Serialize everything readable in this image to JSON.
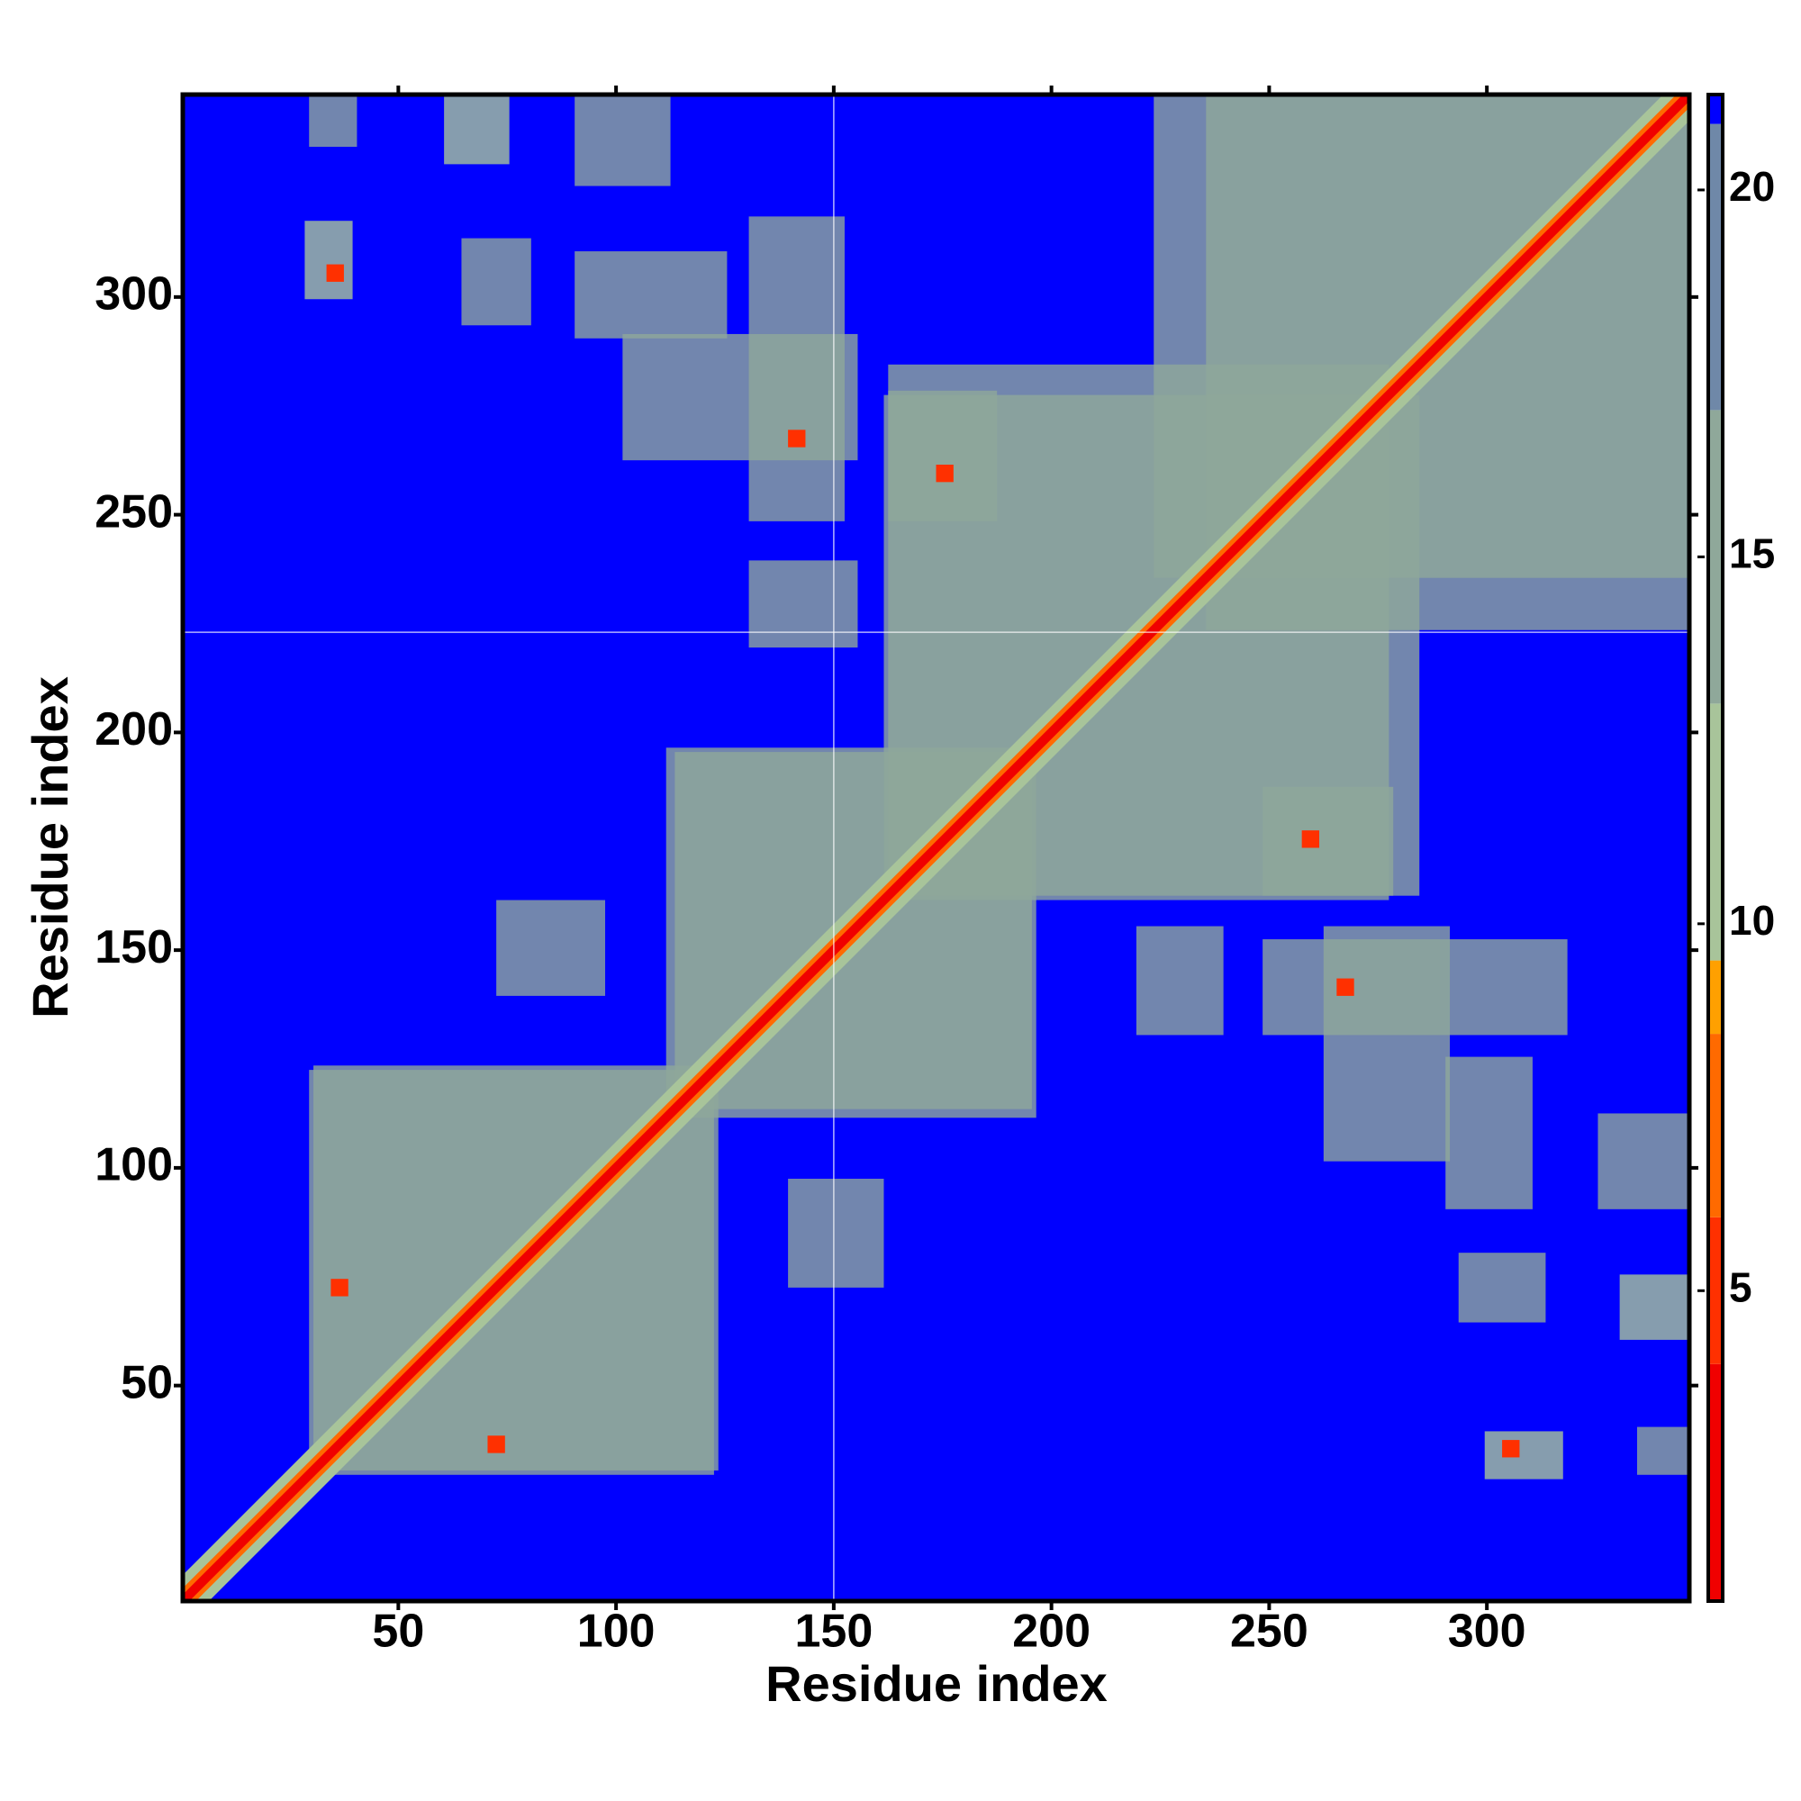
{
  "chart_data": {
    "type": "contact-map",
    "x_label": "Residue index",
    "y_label": "Residue index",
    "xlim": [
      0.5,
      346.5
    ],
    "ylim": [
      0.5,
      346.5
    ],
    "xticks": [
      50,
      100,
      150,
      200,
      250,
      300
    ],
    "yticks": [
      50,
      100,
      150,
      200,
      250,
      300
    ],
    "clim": [
      0.77,
      21.3
    ],
    "cticks": [
      5,
      10,
      15,
      20
    ],
    "colorscale": [
      {
        "value": 0.77,
        "color": "#f00000"
      },
      {
        "value": 4,
        "color": "#ff3000"
      },
      {
        "value": 6,
        "color": "#ff6a00"
      },
      {
        "value": 8.5,
        "color": "#ffa000"
      },
      {
        "value": 9.5,
        "color": "#a8c49a"
      },
      {
        "value": 13,
        "color": "#8fa89a"
      },
      {
        "value": 17,
        "color": "#6f88a8"
      },
      {
        "value": 20.9,
        "color": "#0000ff"
      }
    ],
    "symmetric": true,
    "regions": [
      {
        "x": [
          30,
          123
        ],
        "y": [
          31,
          122
        ],
        "value": 13
      },
      {
        "x": [
          112,
          195
        ],
        "y": [
          114,
          196
        ],
        "value": 13
      },
      {
        "x": [
          163,
          277
        ],
        "y": [
          162,
          284
        ],
        "value": 13
      },
      {
        "x": [
          224,
          346
        ],
        "y": [
          236,
          346
        ],
        "value": 13
      },
      {
        "x": [
          30,
          40
        ],
        "y": [
          335,
          346
        ],
        "value": 14
      },
      {
        "x": [
          61,
          75
        ],
        "y": [
          331,
          346
        ],
        "value": 12
      },
      {
        "x": [
          91,
          112
        ],
        "y": [
          326,
          346
        ],
        "value": 13
      },
      {
        "x": [
          29,
          39
        ],
        "y": [
          300,
          317
        ],
        "value": 11
      },
      {
        "x": [
          65,
          80
        ],
        "y": [
          294,
          313
        ],
        "value": 13
      },
      {
        "x": [
          91,
          125
        ],
        "y": [
          291,
          310
        ],
        "value": 13
      },
      {
        "x": [
          131,
          152
        ],
        "y": [
          249,
          318
        ],
        "value": 13
      },
      {
        "x": [
          102,
          155
        ],
        "y": [
          263,
          291
        ],
        "value": 15
      },
      {
        "x": [
          131,
          155
        ],
        "y": [
          220,
          239
        ],
        "value": 15
      },
      {
        "x": [
          163,
          187
        ],
        "y": [
          249,
          278
        ],
        "value": 13
      },
      {
        "x": [
          73,
          97
        ],
        "y": [
          140,
          161
        ],
        "value": 15
      },
      {
        "x": [
          34,
          37
        ],
        "y": [
          304,
          307
        ],
        "value": 4
      },
      {
        "x": [
          140,
          143
        ],
        "y": [
          266,
          269
        ],
        "value": 5
      },
      {
        "x": [
          174,
          177
        ],
        "y": [
          258,
          261
        ],
        "value": 5
      },
      {
        "x": [
          35,
          38
        ],
        "y": [
          71,
          74
        ],
        "value": 5
      }
    ],
    "diagonal": {
      "x": [
        1,
        346
      ],
      "bands": [
        {
          "width": 6,
          "value": 12
        },
        {
          "width": 3,
          "value": 7
        },
        {
          "width": 1.5,
          "value": 2
        }
      ]
    },
    "reference_lines": {
      "x": 150,
      "y": 223
    }
  }
}
